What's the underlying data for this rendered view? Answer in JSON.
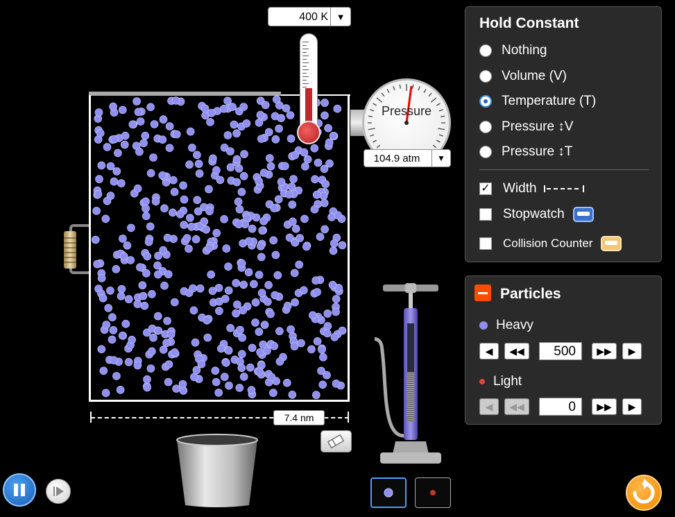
{
  "thermometer": {
    "readout": "400 K",
    "dropdown_icon": "triangle-down-icon"
  },
  "gauge": {
    "label": "Pressure",
    "readout": "104.9 atm",
    "dropdown_icon": "triangle-down-icon"
  },
  "container": {
    "width_readout": "7.4 nm"
  },
  "hold_constant": {
    "title": "Hold Constant",
    "options": [
      {
        "label": "Nothing",
        "selected": false
      },
      {
        "label": "Volume (V)",
        "selected": false
      },
      {
        "label": "Temperature (T)",
        "selected": true
      },
      {
        "label": "Pressure ↕V",
        "selected": false
      },
      {
        "label": "Pressure ↕T",
        "selected": false
      }
    ],
    "checks": [
      {
        "label": "Width",
        "checked": true,
        "icon": "width-arrow-icon"
      },
      {
        "label": "Stopwatch",
        "checked": false,
        "icon": "stopwatch-icon"
      },
      {
        "label": "Collision Counter",
        "checked": false,
        "icon": "collision-counter-icon"
      }
    ]
  },
  "particles_panel": {
    "title": "Particles",
    "heavy": {
      "label": "Heavy",
      "value": "500",
      "color": "#8f8ff0"
    },
    "light": {
      "label": "Light",
      "value": "0",
      "color": "#e0453a"
    }
  },
  "colors": {
    "accent": "#4a90e2",
    "reset": "#f39c12",
    "collapse": "#ff4d00"
  }
}
